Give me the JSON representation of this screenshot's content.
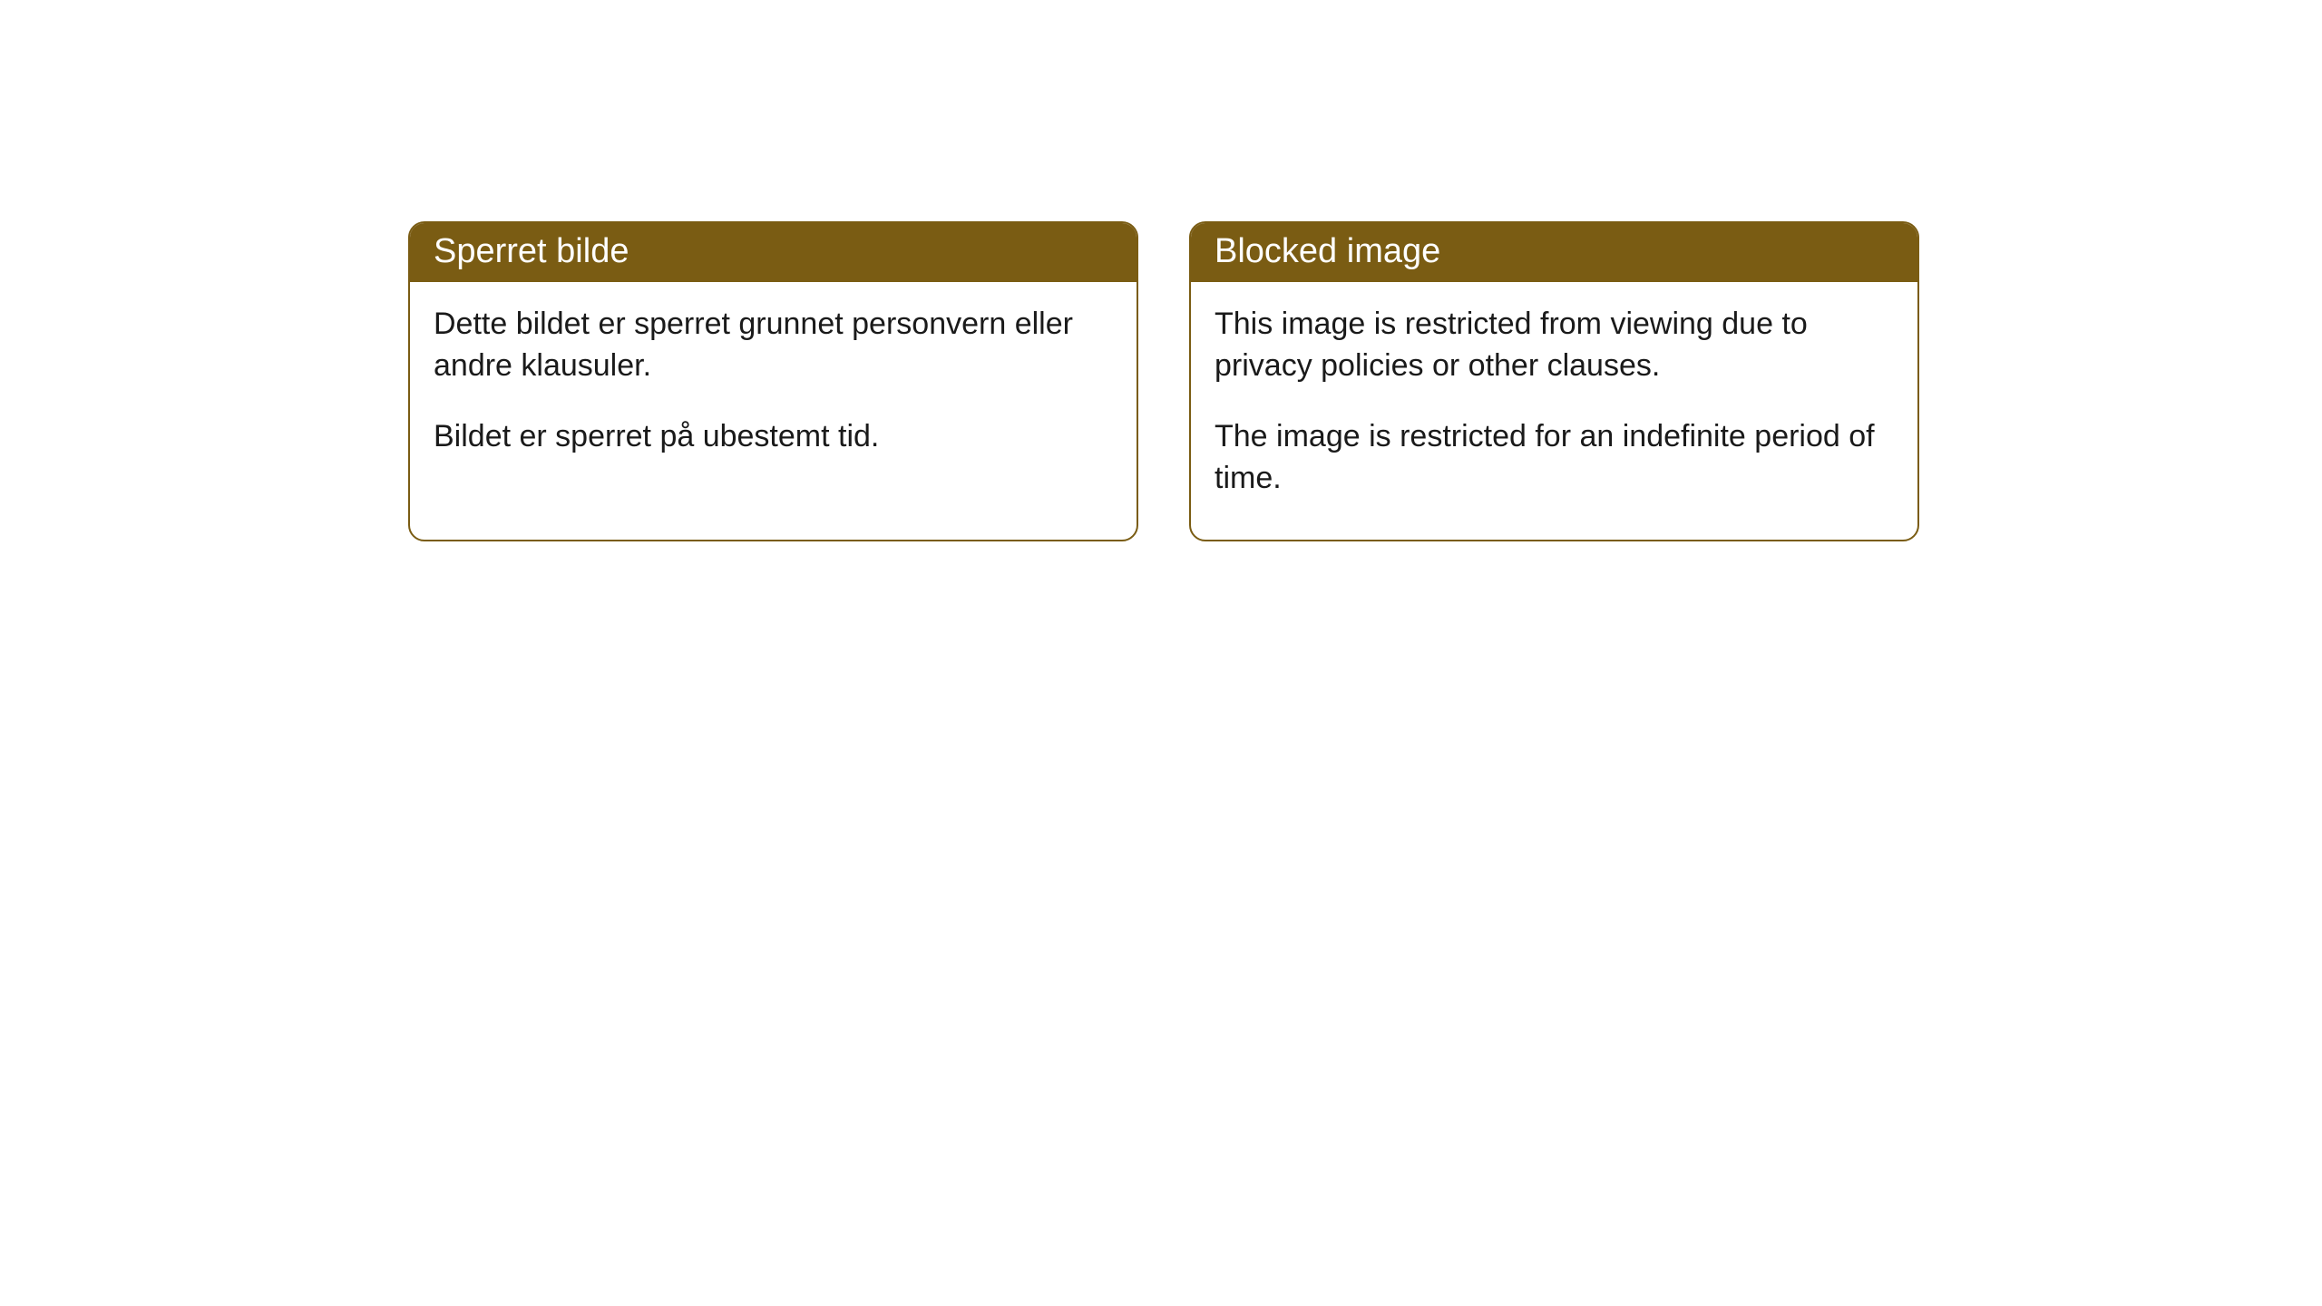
{
  "cards": [
    {
      "title": "Sperret bilde",
      "paragraph1": "Dette bildet er sperret grunnet personvern eller andre klausuler.",
      "paragraph2": "Bildet er sperret på ubestemt tid."
    },
    {
      "title": "Blocked image",
      "paragraph1": "This image is restricted from viewing due to privacy policies or other clauses.",
      "paragraph2": "The image is restricted for an indefinite period of time."
    }
  ],
  "styling": {
    "header_bg_color": "#7a5c13",
    "header_text_color": "#ffffff",
    "body_text_color": "#1a1a1a",
    "border_color": "#7a5c13",
    "background_color": "#ffffff",
    "border_radius": 18,
    "header_fontsize": 38,
    "body_fontsize": 34
  }
}
